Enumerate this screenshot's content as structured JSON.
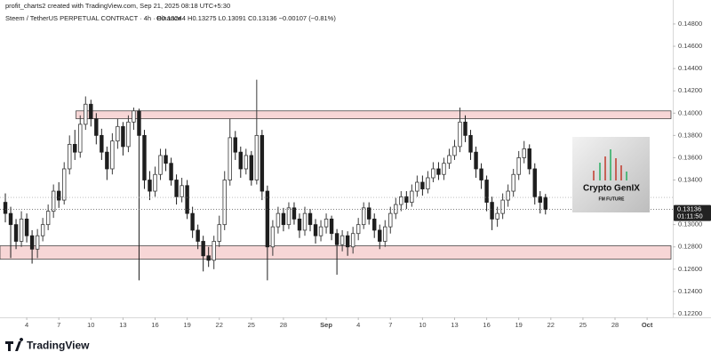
{
  "chart_data": {
    "type": "candlestick",
    "credit": "profit_charts2 created with TradingView.com, Sep 21, 2025 08:18 UTC+5:30",
    "title": "Steem / TetherUS PERPETUAL CONTRACT · 4h · Binance",
    "ohlc_header": "O0.13244 H0.13275 L0.13091 C0.13136 −0.00107 (−0.81%)",
    "countdown": "01:11:50",
    "brand": "TradingView",
    "watermark": {
      "title": "Crypto GenIX",
      "subtitle": "FM FUTURE"
    },
    "up_color": "#3a3a3a",
    "down_color": "#1e1e1e",
    "zone_color": "#f7d6d6",
    "xlim": [
      1.5,
      64.4
    ],
    "ylim": [
      0.12168,
      0.15015
    ],
    "xticks": [
      4,
      7,
      10,
      13,
      16,
      19,
      22,
      25,
      28,
      {
        "value": 32,
        "label": "Sep"
      },
      {
        "value": 35,
        "label": "4"
      },
      {
        "value": 38,
        "label": "7"
      },
      {
        "value": 41,
        "label": "10"
      },
      {
        "value": 44,
        "label": "13"
      },
      {
        "value": 47,
        "label": "16"
      },
      {
        "value": 50,
        "label": "19"
      },
      {
        "value": 53,
        "label": "22"
      },
      {
        "value": 56,
        "label": "25"
      },
      {
        "value": 59,
        "label": "28"
      },
      {
        "value": 62,
        "label": "Oct"
      }
    ],
    "yticks": [
      {
        "value": 0.122,
        "label": "0.12200"
      },
      {
        "value": 0.124,
        "label": "0.12400"
      },
      {
        "value": 0.126,
        "label": "0.12600"
      },
      {
        "value": 0.128,
        "label": "0.12800"
      },
      {
        "value": 0.13,
        "label": "0.13000"
      },
      {
        "value": 0.134,
        "label": "0.13400"
      },
      {
        "value": 0.136,
        "label": "0.13600"
      },
      {
        "value": 0.138,
        "label": "0.13800"
      },
      {
        "value": 0.14,
        "label": "0.14000"
      },
      {
        "value": 0.142,
        "label": "0.14200"
      },
      {
        "value": 0.144,
        "label": "0.14400"
      },
      {
        "value": 0.146,
        "label": "0.14600"
      },
      {
        "value": 0.148,
        "label": "0.14800"
      }
    ],
    "zones": [
      {
        "from_x": 8.6,
        "low": 0.1395,
        "high": 0.1402
      },
      {
        "from_x": 1.5,
        "low": 0.1269,
        "high": 0.1281
      }
    ],
    "candles": {
      "x": [
        2,
        2.5,
        3,
        3.5,
        4,
        4.5,
        5,
        5.5,
        6,
        6.5,
        7,
        7.5,
        8,
        8.5,
        9,
        9.5,
        10,
        10.5,
        11,
        11.5,
        12,
        12.5,
        13,
        13.5,
        14,
        14.5,
        15,
        15.5,
        16,
        16.5,
        17,
        17.5,
        18,
        18.5,
        19,
        19.5,
        20,
        20.5,
        21,
        21.5,
        22,
        22.5,
        23,
        23.5,
        24,
        24.5,
        25,
        25.5,
        26,
        26.5,
        27,
        27.5,
        28,
        28.5,
        29,
        29.5,
        30,
        30.5,
        31,
        31.5,
        32,
        32.5,
        33,
        33.5,
        34,
        34.5,
        35,
        35.5,
        36,
        36.5,
        37,
        37.5,
        38,
        38.5,
        39,
        39.5,
        40,
        40.5,
        41,
        41.5,
        42,
        42.5,
        43,
        43.5,
        44,
        44.5,
        45,
        45.5,
        46,
        46.5,
        47,
        47.5,
        48,
        48.5,
        49,
        49.5,
        50,
        50.5,
        51,
        51.5,
        52,
        52.5
      ],
      "open": [
        0.132,
        0.131,
        0.13,
        0.1285,
        0.1305,
        0.129,
        0.1278,
        0.129,
        0.13,
        0.1312,
        0.133,
        0.1322,
        0.135,
        0.1372,
        0.1365,
        0.139,
        0.1408,
        0.1395,
        0.138,
        0.1365,
        0.135,
        0.1375,
        0.1388,
        0.137,
        0.1392,
        0.1402,
        0.138,
        0.134,
        0.133,
        0.1345,
        0.1362,
        0.1355,
        0.134,
        0.1325,
        0.1335,
        0.131,
        0.1295,
        0.1285,
        0.1272,
        0.1268,
        0.1285,
        0.13,
        0.134,
        0.1378,
        0.1365,
        0.135,
        0.1362,
        0.134,
        0.138,
        0.133,
        0.128,
        0.1298,
        0.131,
        0.13,
        0.1315,
        0.1305,
        0.1295,
        0.131,
        0.13,
        0.129,
        0.1298,
        0.1305,
        0.1292,
        0.1282,
        0.129,
        0.128,
        0.1292,
        0.13,
        0.1315,
        0.1305,
        0.1295,
        0.1285,
        0.1298,
        0.131,
        0.1318,
        0.1325,
        0.132,
        0.133,
        0.1338,
        0.1332,
        0.1342,
        0.135,
        0.1345,
        0.1355,
        0.1362,
        0.137,
        0.1392,
        0.138,
        0.1365,
        0.135,
        0.134,
        0.132,
        0.1305,
        0.131,
        0.1322,
        0.133,
        0.1345,
        0.136,
        0.1368,
        0.135,
        0.1325,
        0.13244
      ],
      "high": [
        0.1328,
        0.1316,
        0.1305,
        0.1312,
        0.131,
        0.1295,
        0.1296,
        0.1306,
        0.1318,
        0.1336,
        0.1338,
        0.1356,
        0.138,
        0.1385,
        0.1398,
        0.1415,
        0.1412,
        0.14,
        0.1386,
        0.137,
        0.1382,
        0.1395,
        0.1392,
        0.1398,
        0.1405,
        0.1404,
        0.1385,
        0.1348,
        0.1352,
        0.1368,
        0.1368,
        0.136,
        0.1345,
        0.1342,
        0.134,
        0.1316,
        0.13,
        0.129,
        0.128,
        0.129,
        0.1308,
        0.1348,
        0.1395,
        0.1384,
        0.137,
        0.1368,
        0.1366,
        0.143,
        0.1385,
        0.1335,
        0.1304,
        0.1316,
        0.1315,
        0.132,
        0.132,
        0.131,
        0.1316,
        0.1314,
        0.1305,
        0.1304,
        0.131,
        0.1308,
        0.1296,
        0.1295,
        0.1294,
        0.1298,
        0.1306,
        0.132,
        0.132,
        0.131,
        0.13,
        0.1304,
        0.1316,
        0.1324,
        0.133,
        0.133,
        0.1336,
        0.1344,
        0.1344,
        0.1348,
        0.1356,
        0.1356,
        0.136,
        0.1368,
        0.1376,
        0.1405,
        0.1398,
        0.1385,
        0.137,
        0.1355,
        0.1344,
        0.1325,
        0.1316,
        0.1328,
        0.1336,
        0.135,
        0.1366,
        0.1375,
        0.1372,
        0.1355,
        0.133,
        0.13275
      ],
      "low": [
        0.1302,
        0.127,
        0.1278,
        0.128,
        0.1284,
        0.1265,
        0.127,
        0.1285,
        0.1295,
        0.1306,
        0.1315,
        0.1318,
        0.1345,
        0.1358,
        0.136,
        0.1385,
        0.1388,
        0.1372,
        0.1358,
        0.134,
        0.1345,
        0.1368,
        0.1362,
        0.1365,
        0.1385,
        0.125,
        0.1332,
        0.1322,
        0.1325,
        0.134,
        0.1348,
        0.1335,
        0.1318,
        0.132,
        0.1305,
        0.1288,
        0.1278,
        0.1258,
        0.1262,
        0.126,
        0.128,
        0.1295,
        0.1335,
        0.1358,
        0.1342,
        0.1345,
        0.1335,
        0.1336,
        0.1322,
        0.125,
        0.1272,
        0.1292,
        0.1294,
        0.1296,
        0.13,
        0.1288,
        0.129,
        0.1294,
        0.1283,
        0.1285,
        0.1292,
        0.1286,
        0.1255,
        0.1276,
        0.1272,
        0.1274,
        0.1286,
        0.1296,
        0.13,
        0.1288,
        0.1278,
        0.128,
        0.1292,
        0.1305,
        0.1312,
        0.1314,
        0.1316,
        0.1325,
        0.1326,
        0.1328,
        0.1338,
        0.134,
        0.134,
        0.135,
        0.1358,
        0.1365,
        0.1374,
        0.1358,
        0.1342,
        0.1332,
        0.1312,
        0.1295,
        0.1298,
        0.1305,
        0.1316,
        0.1325,
        0.134,
        0.1355,
        0.1345,
        0.1318,
        0.131,
        0.13091
      ],
      "close": [
        0.131,
        0.13,
        0.1285,
        0.1305,
        0.129,
        0.1278,
        0.129,
        0.13,
        0.1312,
        0.133,
        0.1322,
        0.135,
        0.1372,
        0.1365,
        0.139,
        0.1408,
        0.1395,
        0.138,
        0.1365,
        0.135,
        0.1375,
        0.1388,
        0.137,
        0.1392,
        0.1402,
        0.138,
        0.134,
        0.133,
        0.1345,
        0.1362,
        0.1355,
        0.134,
        0.1325,
        0.1335,
        0.131,
        0.1295,
        0.1285,
        0.1272,
        0.1268,
        0.1285,
        0.13,
        0.134,
        0.1378,
        0.1365,
        0.135,
        0.1362,
        0.134,
        0.138,
        0.133,
        0.128,
        0.1298,
        0.131,
        0.13,
        0.1315,
        0.1305,
        0.1295,
        0.131,
        0.13,
        0.129,
        0.1298,
        0.1305,
        0.1292,
        0.1282,
        0.129,
        0.128,
        0.1292,
        0.13,
        0.1315,
        0.1305,
        0.1295,
        0.1285,
        0.1298,
        0.131,
        0.1318,
        0.1325,
        0.132,
        0.133,
        0.1338,
        0.1332,
        0.1342,
        0.135,
        0.1345,
        0.1355,
        0.1362,
        0.137,
        0.1392,
        0.138,
        0.1365,
        0.135,
        0.134,
        0.132,
        0.1305,
        0.131,
        0.1322,
        0.133,
        0.1345,
        0.136,
        0.1368,
        0.135,
        0.1325,
        0.132,
        0.13136
      ]
    }
  }
}
